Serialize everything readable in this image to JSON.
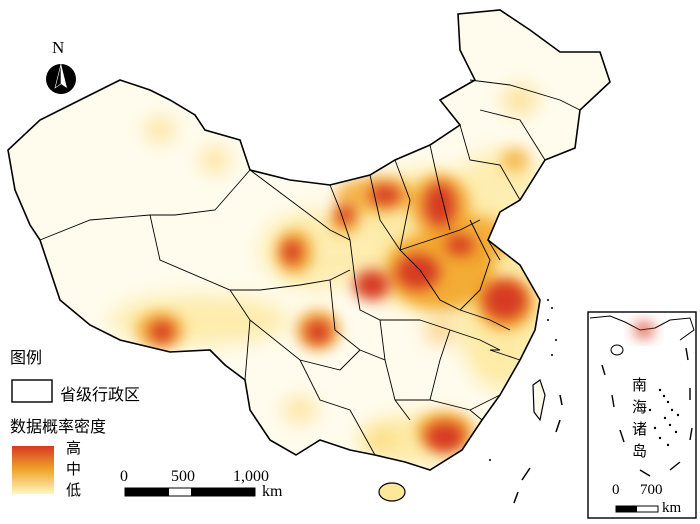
{
  "map": {
    "north": "N",
    "legend": {
      "title": "图例",
      "boundary_label": "省级行政区",
      "density_label": "数据概率密度",
      "levels": [
        "高",
        "中",
        "低"
      ]
    },
    "scale": {
      "ticks": [
        "0",
        "500",
        "1,000"
      ],
      "unit": "km"
    },
    "inset": {
      "label_chars": [
        "南",
        "海",
        "诸",
        "岛"
      ],
      "scale_ticks": [
        "0",
        "700"
      ],
      "unit": "km"
    },
    "colors": {
      "high": "#d63a22",
      "mid": "#f2a52a",
      "low": "#fdf6c4",
      "outline": "#000000"
    }
  }
}
